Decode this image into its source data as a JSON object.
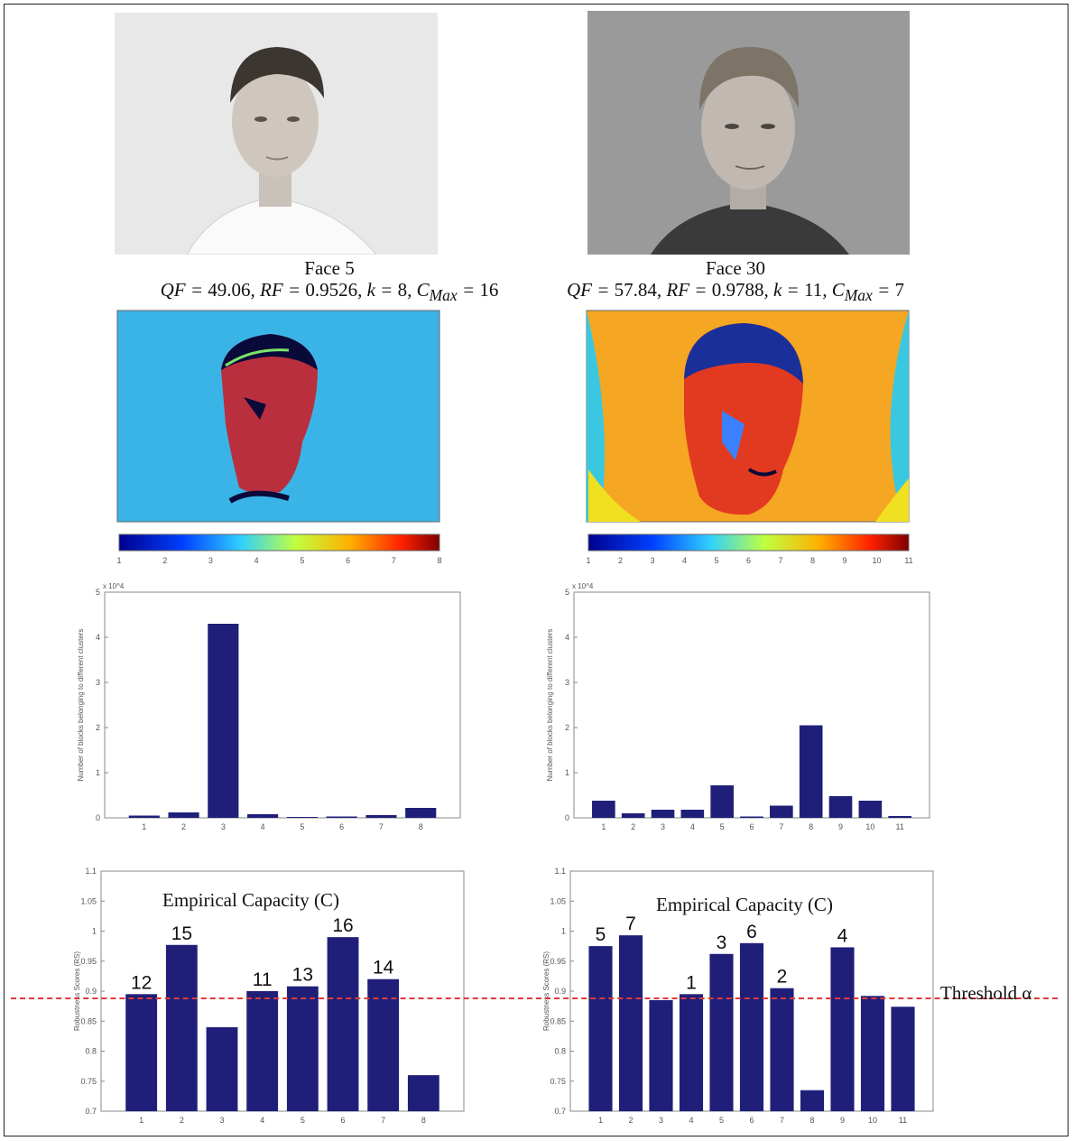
{
  "faces": [
    {
      "name": "Face 5",
      "formula": "QF = 49.06, RF = 0.9526, k = 8, C_Max = 16",
      "formula_parts": {
        "qf": "49.06",
        "rf": "0.9526",
        "k": "8",
        "cmax": "16"
      },
      "photo_background": "#e8e8e8",
      "colorbar_ticks": [
        "1",
        "2",
        "3",
        "4",
        "5",
        "6",
        "7",
        "8"
      ]
    },
    {
      "name": "Face 30",
      "formula": "QF = 57.84, RF = 0.9788, k = 11, C_Max = 7",
      "formula_parts": {
        "qf": "57.84",
        "rf": "0.9788",
        "k": "11",
        "cmax": "7"
      },
      "photo_background": "#9a9a9a",
      "colorbar_ticks": [
        "1",
        "2",
        "3",
        "4",
        "5",
        "6",
        "7",
        "8",
        "9",
        "10",
        "11"
      ]
    }
  ],
  "annotations": {
    "capacity_title": "Empirical Capacity (C)",
    "threshold_label": "Threshold α",
    "threshold_value": 0.89
  },
  "colors": {
    "bar": "#1f1f7a",
    "threshold": "#e03a3a",
    "heatmap1_bg": "#3ab4e6",
    "heatmap2_bg": "#f5a623"
  },
  "chart_data": [
    {
      "type": "bar",
      "id": "cluster-hist-face5",
      "ylabel": "Number of blocks belonging to different clusters",
      "yscale_label": "x 10^4",
      "categories": [
        "1",
        "2",
        "3",
        "4",
        "5",
        "6",
        "7",
        "8"
      ],
      "values": [
        0.05,
        0.12,
        4.3,
        0.08,
        0.02,
        0.03,
        0.06,
        0.22
      ],
      "ylim": [
        0,
        5
      ],
      "yticks": [
        "0",
        "1",
        "2",
        "3",
        "4",
        "5"
      ]
    },
    {
      "type": "bar",
      "id": "cluster-hist-face30",
      "ylabel": "Number of blocks belonging to different clusters",
      "yscale_label": "x 10^4",
      "categories": [
        "1",
        "2",
        "3",
        "4",
        "5",
        "6",
        "7",
        "8",
        "9",
        "10",
        "11"
      ],
      "values": [
        0.38,
        0.1,
        0.18,
        0.18,
        0.72,
        0.03,
        0.27,
        2.05,
        0.48,
        0.38,
        0.04
      ],
      "ylim": [
        0,
        5
      ],
      "yticks": [
        "0",
        "1",
        "2",
        "3",
        "4",
        "5"
      ]
    },
    {
      "type": "bar",
      "id": "robustness-face5",
      "ylabel": "Robustness Scores (RS)",
      "categories": [
        "1",
        "2",
        "3",
        "4",
        "5",
        "6",
        "7",
        "8"
      ],
      "values": [
        0.895,
        0.977,
        0.84,
        0.9,
        0.908,
        0.99,
        0.92,
        0.76
      ],
      "capacity_labels": [
        "12",
        "15",
        "",
        "11",
        "13",
        "16",
        "14",
        ""
      ],
      "ylim": [
        0.7,
        1.1
      ],
      "yticks": [
        "0.7",
        "0.75",
        "0.8",
        "0.85",
        "0.9",
        "0.95",
        "1",
        "1.05",
        "1.1"
      ]
    },
    {
      "type": "bar",
      "id": "robustness-face30",
      "ylabel": "Robustness Scores (RS)",
      "categories": [
        "1",
        "2",
        "3",
        "4",
        "5",
        "6",
        "7",
        "8",
        "9",
        "10",
        "11"
      ],
      "values": [
        0.975,
        0.993,
        0.885,
        0.895,
        0.962,
        0.98,
        0.905,
        0.735,
        0.973,
        0.892,
        0.874
      ],
      "capacity_labels": [
        "5",
        "7",
        "",
        "1",
        "3",
        "6",
        "2",
        "",
        "4",
        "",
        ""
      ],
      "ylim": [
        0.7,
        1.1
      ],
      "yticks": [
        "0.7",
        "0.75",
        "0.8",
        "0.85",
        "0.9",
        "0.95",
        "1",
        "1.05",
        "1.1"
      ]
    }
  ]
}
